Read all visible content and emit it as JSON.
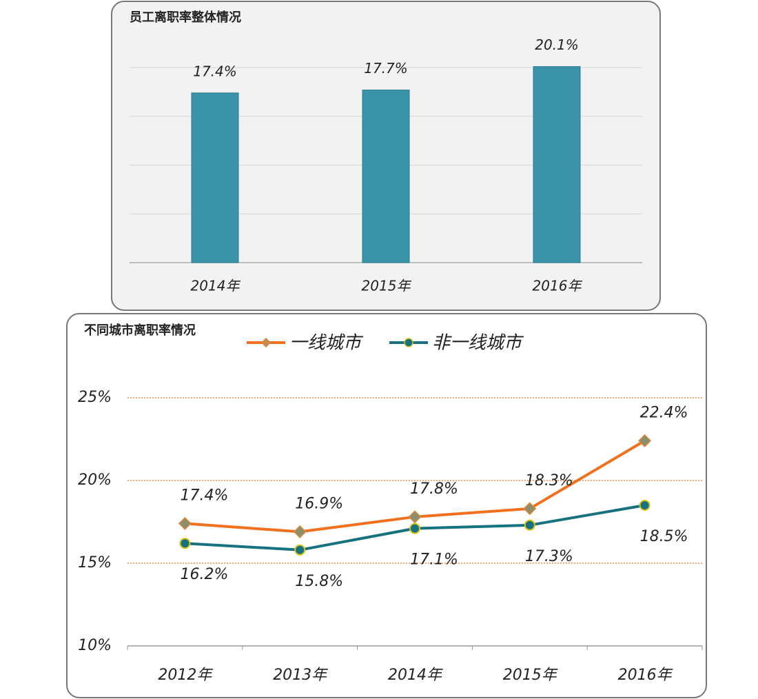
{
  "chart_data": [
    {
      "type": "bar",
      "title": "员工离职率整体情况",
      "categories": [
        "2014年",
        "2015年",
        "2016年"
      ],
      "values": [
        17.4,
        17.7,
        20.1
      ],
      "value_labels": [
        "17.4%",
        "17.7%",
        "20.1%"
      ],
      "color": "#3a93a8",
      "ylim": [
        0,
        20
      ],
      "grid": true
    },
    {
      "type": "line",
      "title": "不同城市离职率情况",
      "categories": [
        "2012年",
        "2013年",
        "2014年",
        "2015年",
        "2016年"
      ],
      "series": [
        {
          "name": "一线城市",
          "color": "#f0701e",
          "values": [
            17.4,
            16.9,
            17.8,
            18.3,
            22.4
          ],
          "value_labels": [
            "17.4%",
            "16.9%",
            "17.8%",
            "18.3%",
            "22.4%"
          ]
        },
        {
          "name": "非一线城市",
          "color": "#16727f",
          "values": [
            16.2,
            15.8,
            17.1,
            17.3,
            18.5
          ],
          "value_labels": [
            "16.2%",
            "15.8%",
            "17.1%",
            "17.3%",
            "18.5%"
          ]
        }
      ],
      "ylim": [
        10,
        25
      ],
      "yticks": [
        {
          "value": 10,
          "label": "10%"
        },
        {
          "value": 15,
          "label": "15%"
        },
        {
          "value": 20,
          "label": "20%"
        },
        {
          "value": 25,
          "label": "25%"
        }
      ],
      "grid": true
    }
  ]
}
